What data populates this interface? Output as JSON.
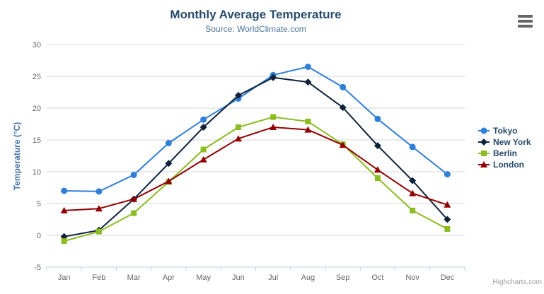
{
  "chart": {
    "title": "Monthly Average Temperature",
    "subtitle": "Source: WorldClimate.com",
    "credit": "Highcharts.com",
    "context_menu_icon": "hamburger-menu-icon"
  },
  "chart_data": {
    "type": "line",
    "title": "Monthly Average Temperature",
    "subtitle": "Source: WorldClimate.com",
    "xlabel": "",
    "ylabel": "Temperature (°C)",
    "categories": [
      "Jan",
      "Feb",
      "Mar",
      "Apr",
      "May",
      "Jun",
      "Jul",
      "Aug",
      "Sep",
      "Oct",
      "Nov",
      "Dec"
    ],
    "ylim": [
      -5,
      30
    ],
    "ytick_interval": 5,
    "ytick_labels": [
      "-5",
      "0",
      "5",
      "10",
      "15",
      "20",
      "25",
      "30"
    ],
    "grid": true,
    "legend_position": "right",
    "colors": {
      "grid": "#d6d6d6",
      "axis_line": "#c0d0e0",
      "tick_label": "#666666",
      "axis_title": "#4572a7",
      "legend_text": "#274b6d"
    },
    "series": [
      {
        "name": "Tokyo",
        "color": "#2f7ed8",
        "marker": "circle",
        "values": [
          7.0,
          6.9,
          9.5,
          14.5,
          18.2,
          21.5,
          25.2,
          26.5,
          23.3,
          18.3,
          13.9,
          9.6
        ]
      },
      {
        "name": "New York",
        "color": "#0d233a",
        "marker": "diamond",
        "values": [
          -0.2,
          0.8,
          5.7,
          11.3,
          17.0,
          22.0,
          24.8,
          24.1,
          20.1,
          14.1,
          8.6,
          2.5
        ]
      },
      {
        "name": "Berlin",
        "color": "#8bbc21",
        "marker": "square",
        "values": [
          -0.9,
          0.6,
          3.5,
          8.4,
          13.5,
          17.0,
          18.6,
          17.9,
          14.3,
          9.0,
          3.9,
          1.0
        ]
      },
      {
        "name": "London",
        "color": "#910000",
        "marker": "triangle",
        "values": [
          3.9,
          4.2,
          5.7,
          8.5,
          11.9,
          15.2,
          17.0,
          16.6,
          14.2,
          10.3,
          6.6,
          4.8
        ]
      }
    ]
  }
}
